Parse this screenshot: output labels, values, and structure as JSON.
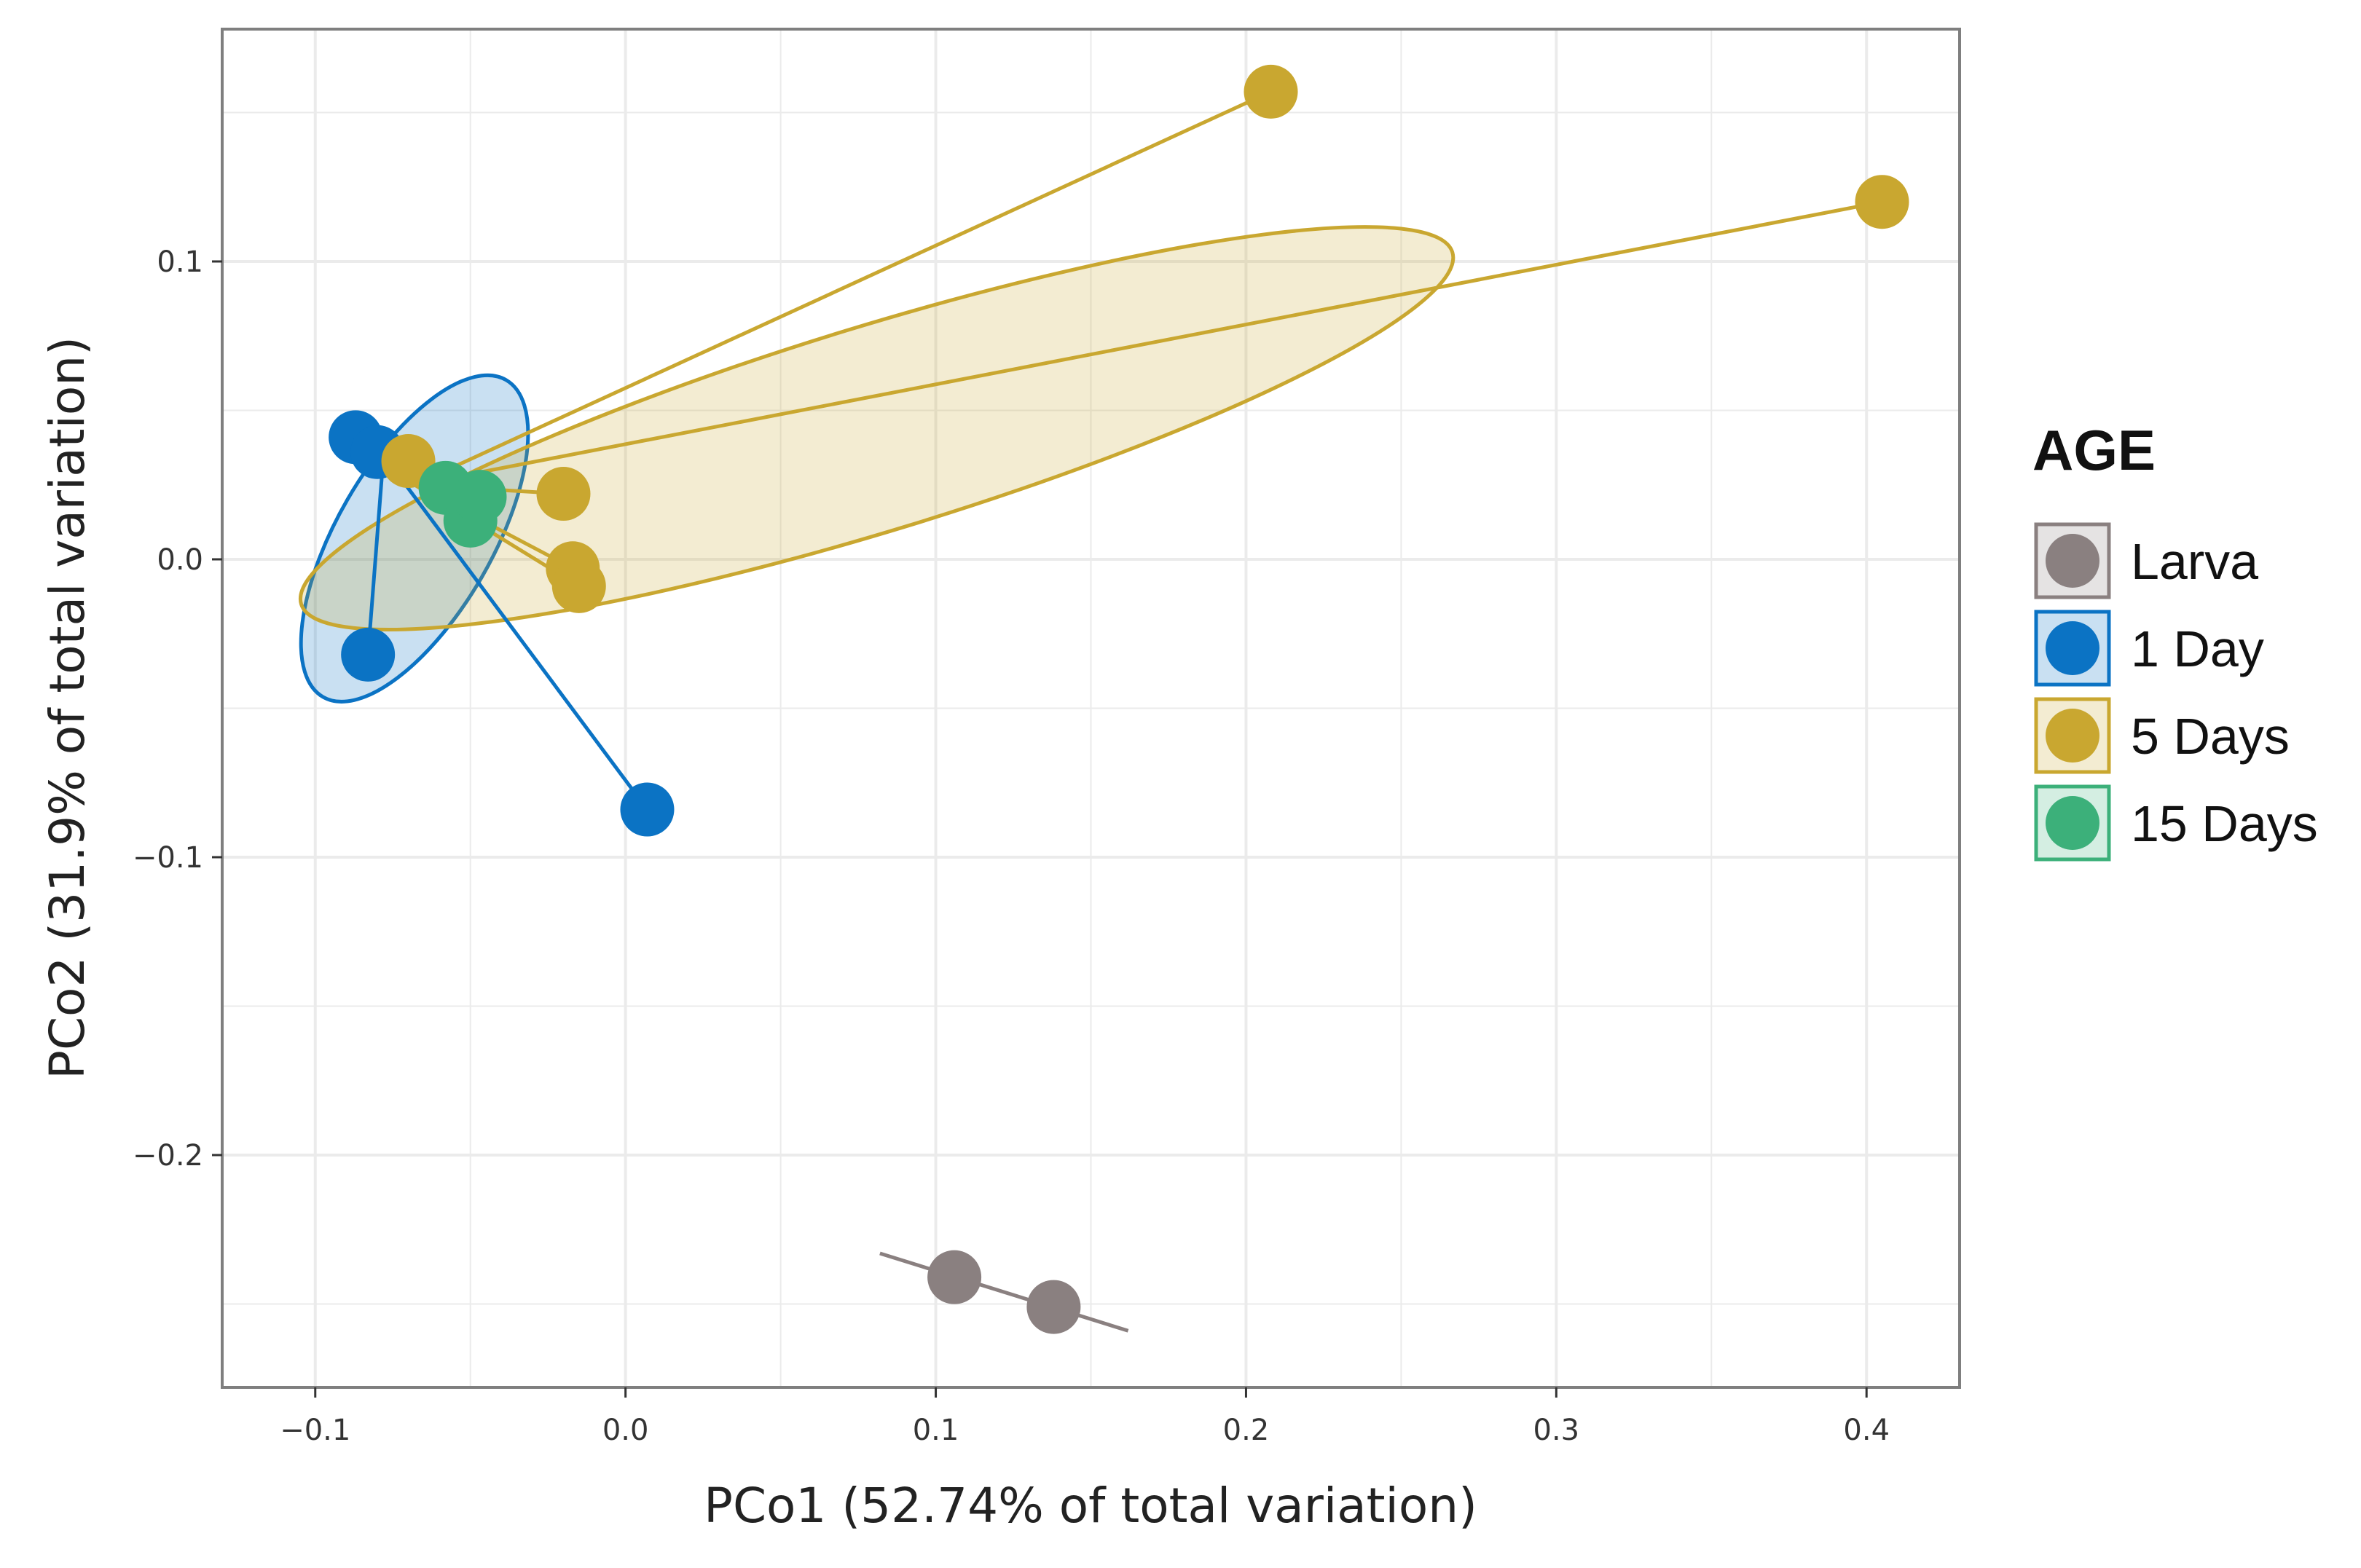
{
  "chart_data": {
    "type": "scatter",
    "title": "",
    "xlabel": "PCo1 (52.74% of total variation)",
    "ylabel": "PCo2 (31.9% of total variation)",
    "xlim": [
      -0.13,
      0.43
    ],
    "ylim": [
      -0.278,
      0.178
    ],
    "x_ticks": [
      -0.1,
      0.0,
      0.1,
      0.2,
      0.3,
      0.4
    ],
    "x_tick_labels": [
      "−0.1",
      "0.0",
      "0.1",
      "0.2",
      "0.3",
      "0.4"
    ],
    "y_ticks": [
      -0.2,
      -0.1,
      0.0,
      0.1
    ],
    "y_tick_labels": [
      "−0.2",
      "−0.1",
      "0.0",
      "0.1"
    ],
    "grid": true,
    "legend": {
      "title": "AGE",
      "position": "right",
      "entries": [
        "Larva",
        "1 Day",
        "5 Days",
        "15 Days"
      ]
    },
    "series": [
      {
        "name": "Larva",
        "color": "#8a8080",
        "centroid": [
          0.121,
          -0.246
        ],
        "points": [
          [
            0.106,
            -0.241
          ],
          [
            0.138,
            -0.251
          ]
        ],
        "line_segment": [
          [
            0.082,
            -0.233
          ],
          [
            0.162,
            -0.259
          ]
        ]
      },
      {
        "name": "1 Day",
        "color": "#0b73c4",
        "centroid": [
          -0.078,
          0.035
        ],
        "points": [
          [
            -0.087,
            0.041
          ],
          [
            -0.08,
            0.036
          ],
          [
            -0.083,
            -0.032
          ],
          [
            0.007,
            -0.084
          ]
        ],
        "ellipse": {
          "center": [
            -0.068,
            0.007
          ],
          "rx": 0.025,
          "ry": 0.059,
          "angle_deg": 30
        }
      },
      {
        "name": "5 Days",
        "color": "#c9a730",
        "centroid": [
          -0.068,
          0.025
        ],
        "points": [
          [
            -0.07,
            0.033
          ],
          [
            -0.02,
            0.022
          ],
          [
            -0.017,
            -0.003
          ],
          [
            -0.015,
            -0.009
          ],
          [
            0.208,
            0.157
          ],
          [
            0.405,
            0.12
          ]
        ],
        "ellipse": {
          "center": [
            0.081,
            0.044
          ],
          "rx": 0.194,
          "ry": 0.033,
          "angle_deg": -17
        }
      },
      {
        "name": "15 Days",
        "color": "#3cb07a",
        "centroid": [
          -0.05,
          0.02
        ],
        "points": [
          [
            -0.058,
            0.024
          ],
          [
            -0.05,
            0.013
          ],
          [
            -0.047,
            0.021
          ]
        ]
      }
    ]
  }
}
